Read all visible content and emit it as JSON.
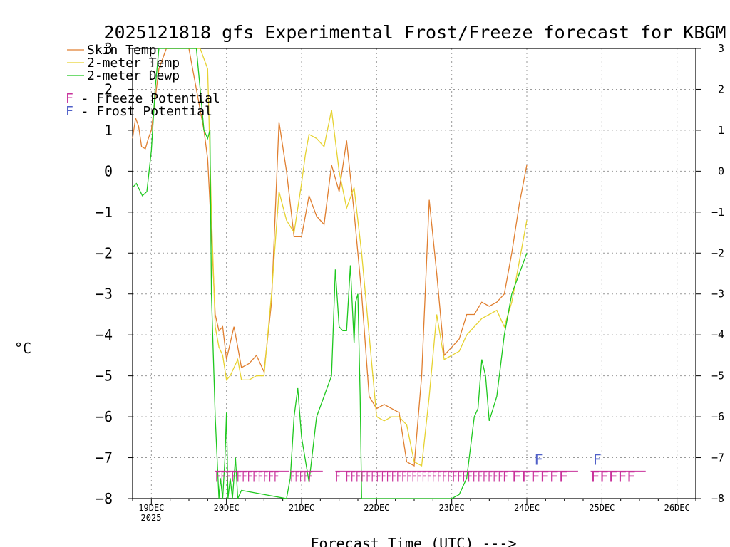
{
  "chart_data": {
    "type": "line",
    "title": "2025121818 gfs Experimental Frost/Freeze forecast for KBGM",
    "xlabel": "Forecast Time (UTC) --->",
    "ylabel": "°C",
    "ylim": [
      -8,
      3
    ],
    "xlim": [
      -0.25,
      7.25
    ],
    "yticks": [
      3,
      2,
      1,
      0,
      -1,
      -2,
      -3,
      -4,
      -5,
      -6,
      -7,
      -8
    ],
    "ytick_labels": [
      "3",
      "2",
      "1",
      "0",
      "−1",
      "−2",
      "−3",
      "−4",
      "−5",
      "−6",
      "−7",
      "−8"
    ],
    "xticks": [
      0,
      1,
      2,
      3,
      4,
      5,
      6,
      7
    ],
    "xtick_labels": [
      "19DEC",
      "20DEC",
      "21DEC",
      "22DEC",
      "23DEC",
      "24DEC",
      "25DEC",
      "26DEC"
    ],
    "year_label": "2025",
    "grid": true,
    "legend": [
      {
        "label": "Skin Temp",
        "color": "#e07f30"
      },
      {
        "label": "2-meter Temp",
        "color": "#e6d231"
      },
      {
        "label": "2-meter Dewp",
        "color": "#1fc81f"
      }
    ],
    "potential_legend": [
      {
        "marker": "F",
        "label": " - Freeze Potential",
        "color": "#c8329b"
      },
      {
        "marker": "F",
        "label": " - Frost Potential",
        "color": "#5060c8"
      }
    ],
    "series": [
      {
        "name": "Skin Temp",
        "color": "#e07f30",
        "x": [
          -0.25,
          -0.21,
          -0.17,
          -0.13,
          -0.08,
          -0.04,
          0.0,
          0.04,
          0.1,
          0.2,
          0.35,
          0.5,
          0.6,
          0.7,
          0.75,
          0.8,
          0.85,
          0.9,
          0.95,
          1.0,
          1.05,
          1.1,
          1.15,
          1.2,
          1.3,
          1.4,
          1.5,
          1.6,
          1.7,
          1.8,
          1.9,
          2.0,
          2.1,
          2.2,
          2.3,
          2.4,
          2.5,
          2.6,
          2.7,
          2.8,
          2.9,
          3.0,
          3.1,
          3.2,
          3.3,
          3.4,
          3.5,
          3.6,
          3.7,
          3.8,
          3.9,
          4.0,
          4.1,
          4.2,
          4.3,
          4.4,
          4.5,
          4.6,
          4.7,
          4.8,
          4.9,
          5.0
        ],
        "y": [
          0.8,
          1.3,
          1.1,
          0.6,
          0.55,
          0.8,
          1.0,
          1.6,
          2.5,
          3.0,
          3.0,
          3.0,
          2.0,
          1.0,
          0.3,
          -1.5,
          -3.5,
          -3.9,
          -3.8,
          -4.6,
          -4.2,
          -3.8,
          -4.3,
          -4.8,
          -4.7,
          -4.5,
          -4.9,
          -3.2,
          1.2,
          0.0,
          -1.6,
          -1.6,
          -0.6,
          -1.1,
          -1.3,
          0.15,
          -0.5,
          0.75,
          -1.0,
          -3.0,
          -5.5,
          -5.8,
          -5.7,
          -5.8,
          -5.9,
          -7.1,
          -7.2,
          -5.0,
          -0.7,
          -2.5,
          -4.5,
          -4.3,
          -4.1,
          -3.5,
          -3.5,
          -3.2,
          -3.3,
          -3.2,
          -3.0,
          -2.0,
          -0.8,
          0.15
        ]
      },
      {
        "name": "2-meter Temp",
        "color": "#e6d231",
        "x": [
          0.55,
          0.65,
          0.75,
          0.8,
          0.85,
          0.9,
          0.95,
          1.0,
          1.05,
          1.1,
          1.15,
          1.2,
          1.3,
          1.4,
          1.5,
          1.6,
          1.7,
          1.8,
          1.9,
          2.0,
          2.05,
          2.1,
          2.2,
          2.3,
          2.4,
          2.5,
          2.6,
          2.7,
          2.8,
          2.9,
          3.0,
          3.1,
          3.2,
          3.3,
          3.4,
          3.5,
          3.6,
          3.7,
          3.8,
          3.9,
          4.0,
          4.1,
          4.2,
          4.3,
          4.4,
          4.5,
          4.6,
          4.7,
          4.8,
          4.9,
          5.0
        ],
        "y": [
          3.0,
          3.0,
          2.5,
          -1.0,
          -3.8,
          -4.3,
          -4.5,
          -5.1,
          -5.0,
          -4.8,
          -4.6,
          -5.1,
          -5.1,
          -5.0,
          -5.0,
          -3.0,
          -0.5,
          -1.2,
          -1.5,
          -0.3,
          0.4,
          0.9,
          0.8,
          0.6,
          1.5,
          0.0,
          -0.9,
          -0.4,
          -2.0,
          -4.0,
          -6.0,
          -6.1,
          -6.0,
          -6.0,
          -6.2,
          -7.1,
          -7.2,
          -5.5,
          -3.5,
          -4.6,
          -4.5,
          -4.4,
          -4.0,
          -3.8,
          -3.6,
          -3.5,
          -3.4,
          -3.8,
          -3.2,
          -2.2,
          -1.2
        ]
      },
      {
        "name": "2-meter Dewp",
        "color": "#1fc81f",
        "x": [
          -0.25,
          -0.2,
          -0.12,
          -0.06,
          0.0,
          0.05,
          0.1,
          0.15,
          0.6,
          0.7,
          0.75,
          0.78,
          0.8,
          0.85,
          0.9,
          0.92,
          0.95,
          0.98,
          1.0,
          1.02,
          1.05,
          1.08,
          1.12,
          1.15,
          1.2,
          1.8,
          1.85,
          1.9,
          1.95,
          2.0,
          2.1,
          2.2,
          2.3,
          2.4,
          2.45,
          2.5,
          2.55,
          2.6,
          2.65,
          2.7,
          2.72,
          2.75,
          2.78,
          2.8,
          2.85,
          2.9,
          4.0,
          4.1,
          4.2,
          4.3,
          4.35,
          4.4,
          4.45,
          4.5,
          4.6,
          4.7,
          4.8,
          4.9,
          5.0
        ],
        "y": [
          -0.4,
          -0.3,
          -0.6,
          -0.5,
          0.5,
          2.0,
          3.0,
          3.0,
          3.0,
          1.0,
          0.8,
          1.0,
          -3.0,
          -6.0,
          -8.0,
          -7.5,
          -8.0,
          -7.0,
          -5.9,
          -8.0,
          -7.5,
          -8.0,
          -7.0,
          -8.0,
          -7.8,
          -8.0,
          -7.5,
          -6.0,
          -5.3,
          -6.5,
          -7.6,
          -6.0,
          -5.5,
          -5.0,
          -2.4,
          -3.8,
          -3.9,
          -3.9,
          -2.3,
          -4.2,
          -3.2,
          -3.0,
          -5.5,
          -8.0,
          -8.0,
          -8.0,
          -8.0,
          -7.9,
          -7.5,
          -6.0,
          -5.8,
          -4.6,
          -5.0,
          -6.1,
          -5.5,
          -4.0,
          -3.0,
          -2.5,
          -2.0
        ]
      }
    ],
    "freeze_potential": [
      {
        "x": [
          0.85,
          1.7
        ],
        "y": -7.45,
        "label": "FFFFFFFFFFFF"
      },
      {
        "x": [
          1.85,
          2.15
        ],
        "y": -7.45,
        "label": "FFFFF"
      },
      {
        "x": [
          2.45,
          4.75
        ],
        "y": -7.45,
        "label": "F FFFFFFFFFFFFFFFFFFFFFFFFFFFFFFFF"
      },
      {
        "x": [
          4.8,
          5.55
        ],
        "y": -7.45,
        "label": "FFFFFF"
      },
      {
        "x": [
          5.85,
          6.45
        ],
        "y": -7.45,
        "label": "FFFFF"
      }
    ],
    "frost_potential": [
      {
        "x": 5.1,
        "y": -7.05,
        "label": "F"
      },
      {
        "x": 5.88,
        "y": -7.05,
        "label": "F"
      }
    ]
  }
}
